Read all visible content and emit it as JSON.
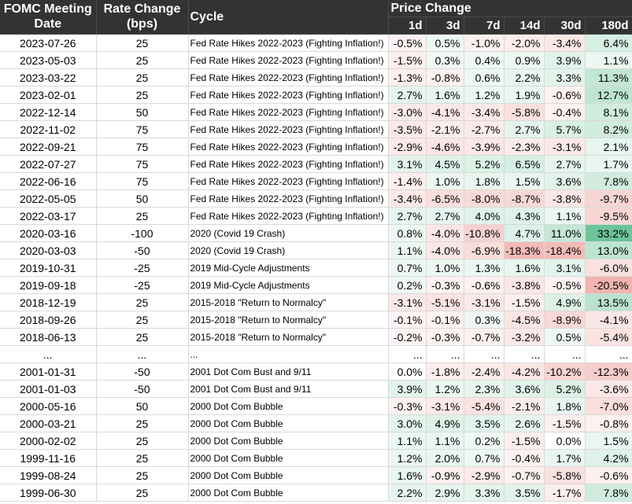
{
  "header": {
    "date_line1": "FOMC Meeting",
    "date_line2": "Date",
    "rate_line1": "Rate Change",
    "rate_line2": "(bps)",
    "cycle": "Cycle",
    "price_change": "Price Change",
    "periods": [
      "1d",
      "3d",
      "7d",
      "14d",
      "30d",
      "180d"
    ]
  },
  "rows": [
    {
      "date": "2023-07-26",
      "rate": "25",
      "cycle": "Fed Rate Hikes 2022-2023 (Fighting Inflation!)",
      "changes": [
        "-0.5%",
        "0.5%",
        "-1.0%",
        "-2.0%",
        "-3.4%",
        "6.4%"
      ]
    },
    {
      "date": "2023-05-03",
      "rate": "25",
      "cycle": "Fed Rate Hikes 2022-2023 (Fighting Inflation!)",
      "changes": [
        "-1.5%",
        "0.3%",
        "0.4%",
        "0.9%",
        "3.9%",
        "1.1%"
      ]
    },
    {
      "date": "2023-03-22",
      "rate": "25",
      "cycle": "Fed Rate Hikes 2022-2023 (Fighting Inflation!)",
      "changes": [
        "-1.3%",
        "-0.8%",
        "0.6%",
        "2.2%",
        "3.3%",
        "11.3%"
      ]
    },
    {
      "date": "2023-02-01",
      "rate": "25",
      "cycle": "Fed Rate Hikes 2022-2023 (Fighting Inflation!)",
      "changes": [
        "2.7%",
        "1.6%",
        "1.2%",
        "1.9%",
        "-0.6%",
        "12.7%"
      ]
    },
    {
      "date": "2022-12-14",
      "rate": "50",
      "cycle": "Fed Rate Hikes 2022-2023 (Fighting Inflation!)",
      "changes": [
        "-3.0%",
        "-4.1%",
        "-3.4%",
        "-5.8%",
        "-0.4%",
        "8.1%"
      ]
    },
    {
      "date": "2022-11-02",
      "rate": "75",
      "cycle": "Fed Rate Hikes 2022-2023 (Fighting Inflation!)",
      "changes": [
        "-3.5%",
        "-2.1%",
        "-2.7%",
        "2.7%",
        "5.7%",
        "8.2%"
      ]
    },
    {
      "date": "2022-09-21",
      "rate": "75",
      "cycle": "Fed Rate Hikes 2022-2023 (Fighting Inflation!)",
      "changes": [
        "-2.9%",
        "-4.6%",
        "-3.9%",
        "-2.3%",
        "-3.1%",
        "2.1%"
      ]
    },
    {
      "date": "2022-07-27",
      "rate": "75",
      "cycle": "Fed Rate Hikes 2022-2023 (Fighting Inflation!)",
      "changes": [
        "3.1%",
        "4.5%",
        "5.2%",
        "6.5%",
        "2.7%",
        "1.7%"
      ]
    },
    {
      "date": "2022-06-16",
      "rate": "75",
      "cycle": "Fed Rate Hikes 2022-2023 (Fighting Inflation!)",
      "changes": [
        "-1.4%",
        "1.0%",
        "1.8%",
        "1.5%",
        "3.6%",
        "7.8%"
      ]
    },
    {
      "date": "2022-05-05",
      "rate": "50",
      "cycle": "Fed Rate Hikes 2022-2023 (Fighting Inflation!)",
      "changes": [
        "-3.4%",
        "-6.5%",
        "-8.0%",
        "-8.7%",
        "-3.8%",
        "-9.7%"
      ]
    },
    {
      "date": "2022-03-17",
      "rate": "25",
      "cycle": "Fed Rate Hikes 2022-2023 (Fighting Inflation!)",
      "changes": [
        "2.7%",
        "2.7%",
        "4.0%",
        "4.3%",
        "1.1%",
        "-9.5%"
      ]
    },
    {
      "date": "2020-03-16",
      "rate": "-100",
      "cycle": "2020 (Covid 19 Crash)",
      "changes": [
        "0.8%",
        "-4.0%",
        "-10.8%",
        "4.7%",
        "11.0%",
        "33.2%"
      ]
    },
    {
      "date": "2020-03-03",
      "rate": "-50",
      "cycle": "2020 (Covid 19 Crash)",
      "changes": [
        "1.1%",
        "-4.0%",
        "-6.9%",
        "-18.3%",
        "-18.4%",
        "13.0%"
      ]
    },
    {
      "date": "2019-10-31",
      "rate": "-25",
      "cycle": "2019 Mid-Cycle Adjustments",
      "changes": [
        "0.7%",
        "1.0%",
        "1.3%",
        "1.6%",
        "3.1%",
        "-6.0%"
      ]
    },
    {
      "date": "2019-09-18",
      "rate": "-25",
      "cycle": "2019 Mid-Cycle Adjustments",
      "changes": [
        "0.2%",
        "-0.3%",
        "-0.6%",
        "-3.8%",
        "-0.5%",
        "-20.5%"
      ]
    },
    {
      "date": "2018-12-19",
      "rate": "25",
      "cycle": "2015-2018 \"Return to Normalcy\"",
      "changes": [
        "-3.1%",
        "-5.1%",
        "-3.1%",
        "-1.5%",
        "4.9%",
        "13.5%"
      ]
    },
    {
      "date": "2018-09-26",
      "rate": "25",
      "cycle": "2015-2018 \"Return to Normalcy\"",
      "changes": [
        "-0.1%",
        "-0.1%",
        "0.3%",
        "-4.5%",
        "-8.9%",
        "-4.1%"
      ]
    },
    {
      "date": "2018-06-13",
      "rate": "25",
      "cycle": "2015-2018 \"Return to Normalcy\"",
      "changes": [
        "-0.2%",
        "-0.3%",
        "-0.7%",
        "-3.2%",
        "0.5%",
        "-5.4%"
      ]
    },
    {
      "separator": true,
      "date": "...",
      "rate": "...",
      "cycle": "...",
      "changes": [
        "...",
        "...",
        "...",
        "...",
        "...",
        "..."
      ]
    },
    {
      "date": "2001-01-31",
      "rate": "-50",
      "cycle": "2001 Dot Com Bust and 9/11",
      "changes": [
        "0.0%",
        "-1.8%",
        "-2.4%",
        "-4.2%",
        "-10.2%",
        "-12.3%"
      ]
    },
    {
      "date": "2001-01-03",
      "rate": "-50",
      "cycle": "2001 Dot Com Bust and 9/11",
      "changes": [
        "3.9%",
        "1.2%",
        "2.3%",
        "3.6%",
        "5.2%",
        "-3.6%"
      ]
    },
    {
      "date": "2000-05-16",
      "rate": "50",
      "cycle": "2000 Dot Com Bubble",
      "changes": [
        "-0.3%",
        "-3.1%",
        "-5.4%",
        "-2.1%",
        "1.8%",
        "-7.0%"
      ]
    },
    {
      "date": "2000-03-21",
      "rate": "25",
      "cycle": "2000 Dot Com Bubble",
      "changes": [
        "3.0%",
        "4.9%",
        "3.5%",
        "2.6%",
        "-1.5%",
        "-0.8%"
      ]
    },
    {
      "date": "2000-02-02",
      "rate": "25",
      "cycle": "2000 Dot Com Bubble",
      "changes": [
        "1.1%",
        "1.1%",
        "0.2%",
        "-1.5%",
        "0.0%",
        "1.5%"
      ]
    },
    {
      "date": "1999-11-16",
      "rate": "25",
      "cycle": "2000 Dot Com Bubble",
      "changes": [
        "1.2%",
        "2.0%",
        "0.7%",
        "-0.4%",
        "1.7%",
        "4.2%"
      ]
    },
    {
      "date": "1999-08-24",
      "rate": "25",
      "cycle": "2000 Dot Com Bubble",
      "changes": [
        "1.6%",
        "-0.9%",
        "-2.9%",
        "-0.7%",
        "-5.8%",
        "-0.6%"
      ]
    },
    {
      "date": "1999-06-30",
      "rate": "25",
      "cycle": "2000 Dot Com Bubble",
      "changes": [
        "2.2%",
        "2.9%",
        "3.3%",
        "3.5%",
        "-1.7%",
        "7.8%"
      ]
    }
  ],
  "colors": {
    "header_bg": "#333333",
    "header_text": "#ffffff",
    "positive": "#57bb8a",
    "negative": "#e67c73",
    "grid": "#d9d9d9"
  }
}
